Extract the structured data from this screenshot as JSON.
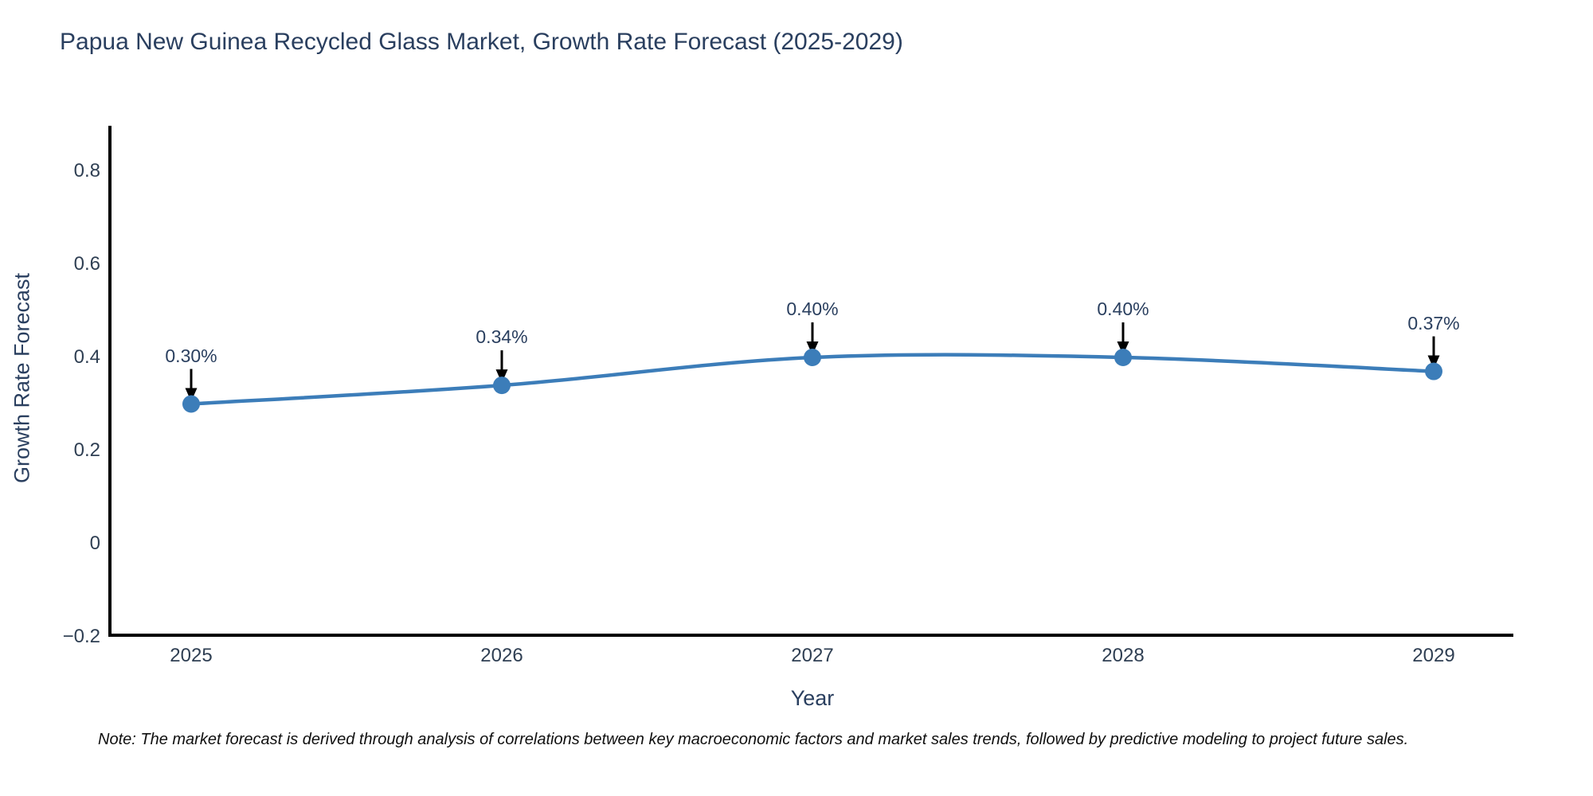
{
  "title": "Papua New Guinea Recycled Glass Market, Growth Rate Forecast (2025-2029)",
  "note": "Note: The market forecast is derived through analysis of correlations between key macroeconomic factors and market sales trends, followed by predictive modeling to project future sales.",
  "chart_data": {
    "type": "line",
    "title": "Papua New Guinea Recycled Glass Market, Growth Rate Forecast (2025-2029)",
    "xlabel": "Year",
    "ylabel": "Growth Rate Forecast",
    "categories": [
      "2025",
      "2026",
      "2027",
      "2028",
      "2029"
    ],
    "series": [
      {
        "name": "Growth Rate Forecast",
        "values": [
          0.3,
          0.34,
          0.4,
          0.4,
          0.37
        ]
      }
    ],
    "values": [
      0.3,
      0.34,
      0.4,
      0.4,
      0.37
    ],
    "point_labels": [
      "0.30%",
      "0.34%",
      "0.40%",
      "0.40%",
      "0.37%"
    ],
    "yticks": [
      "0.8",
      "0.6",
      "0.4",
      "0.2",
      "0",
      "−0.2"
    ],
    "ylim": [
      -0.2,
      0.89
    ],
    "grid": false,
    "legend_position": "none",
    "line_shape": "spline",
    "line_color": "#3c7db9",
    "marker_color": "#3c7db9",
    "annotation_arrow_color": "#000000",
    "axis_color": "#000000",
    "text_color": "#2a3f5f"
  }
}
